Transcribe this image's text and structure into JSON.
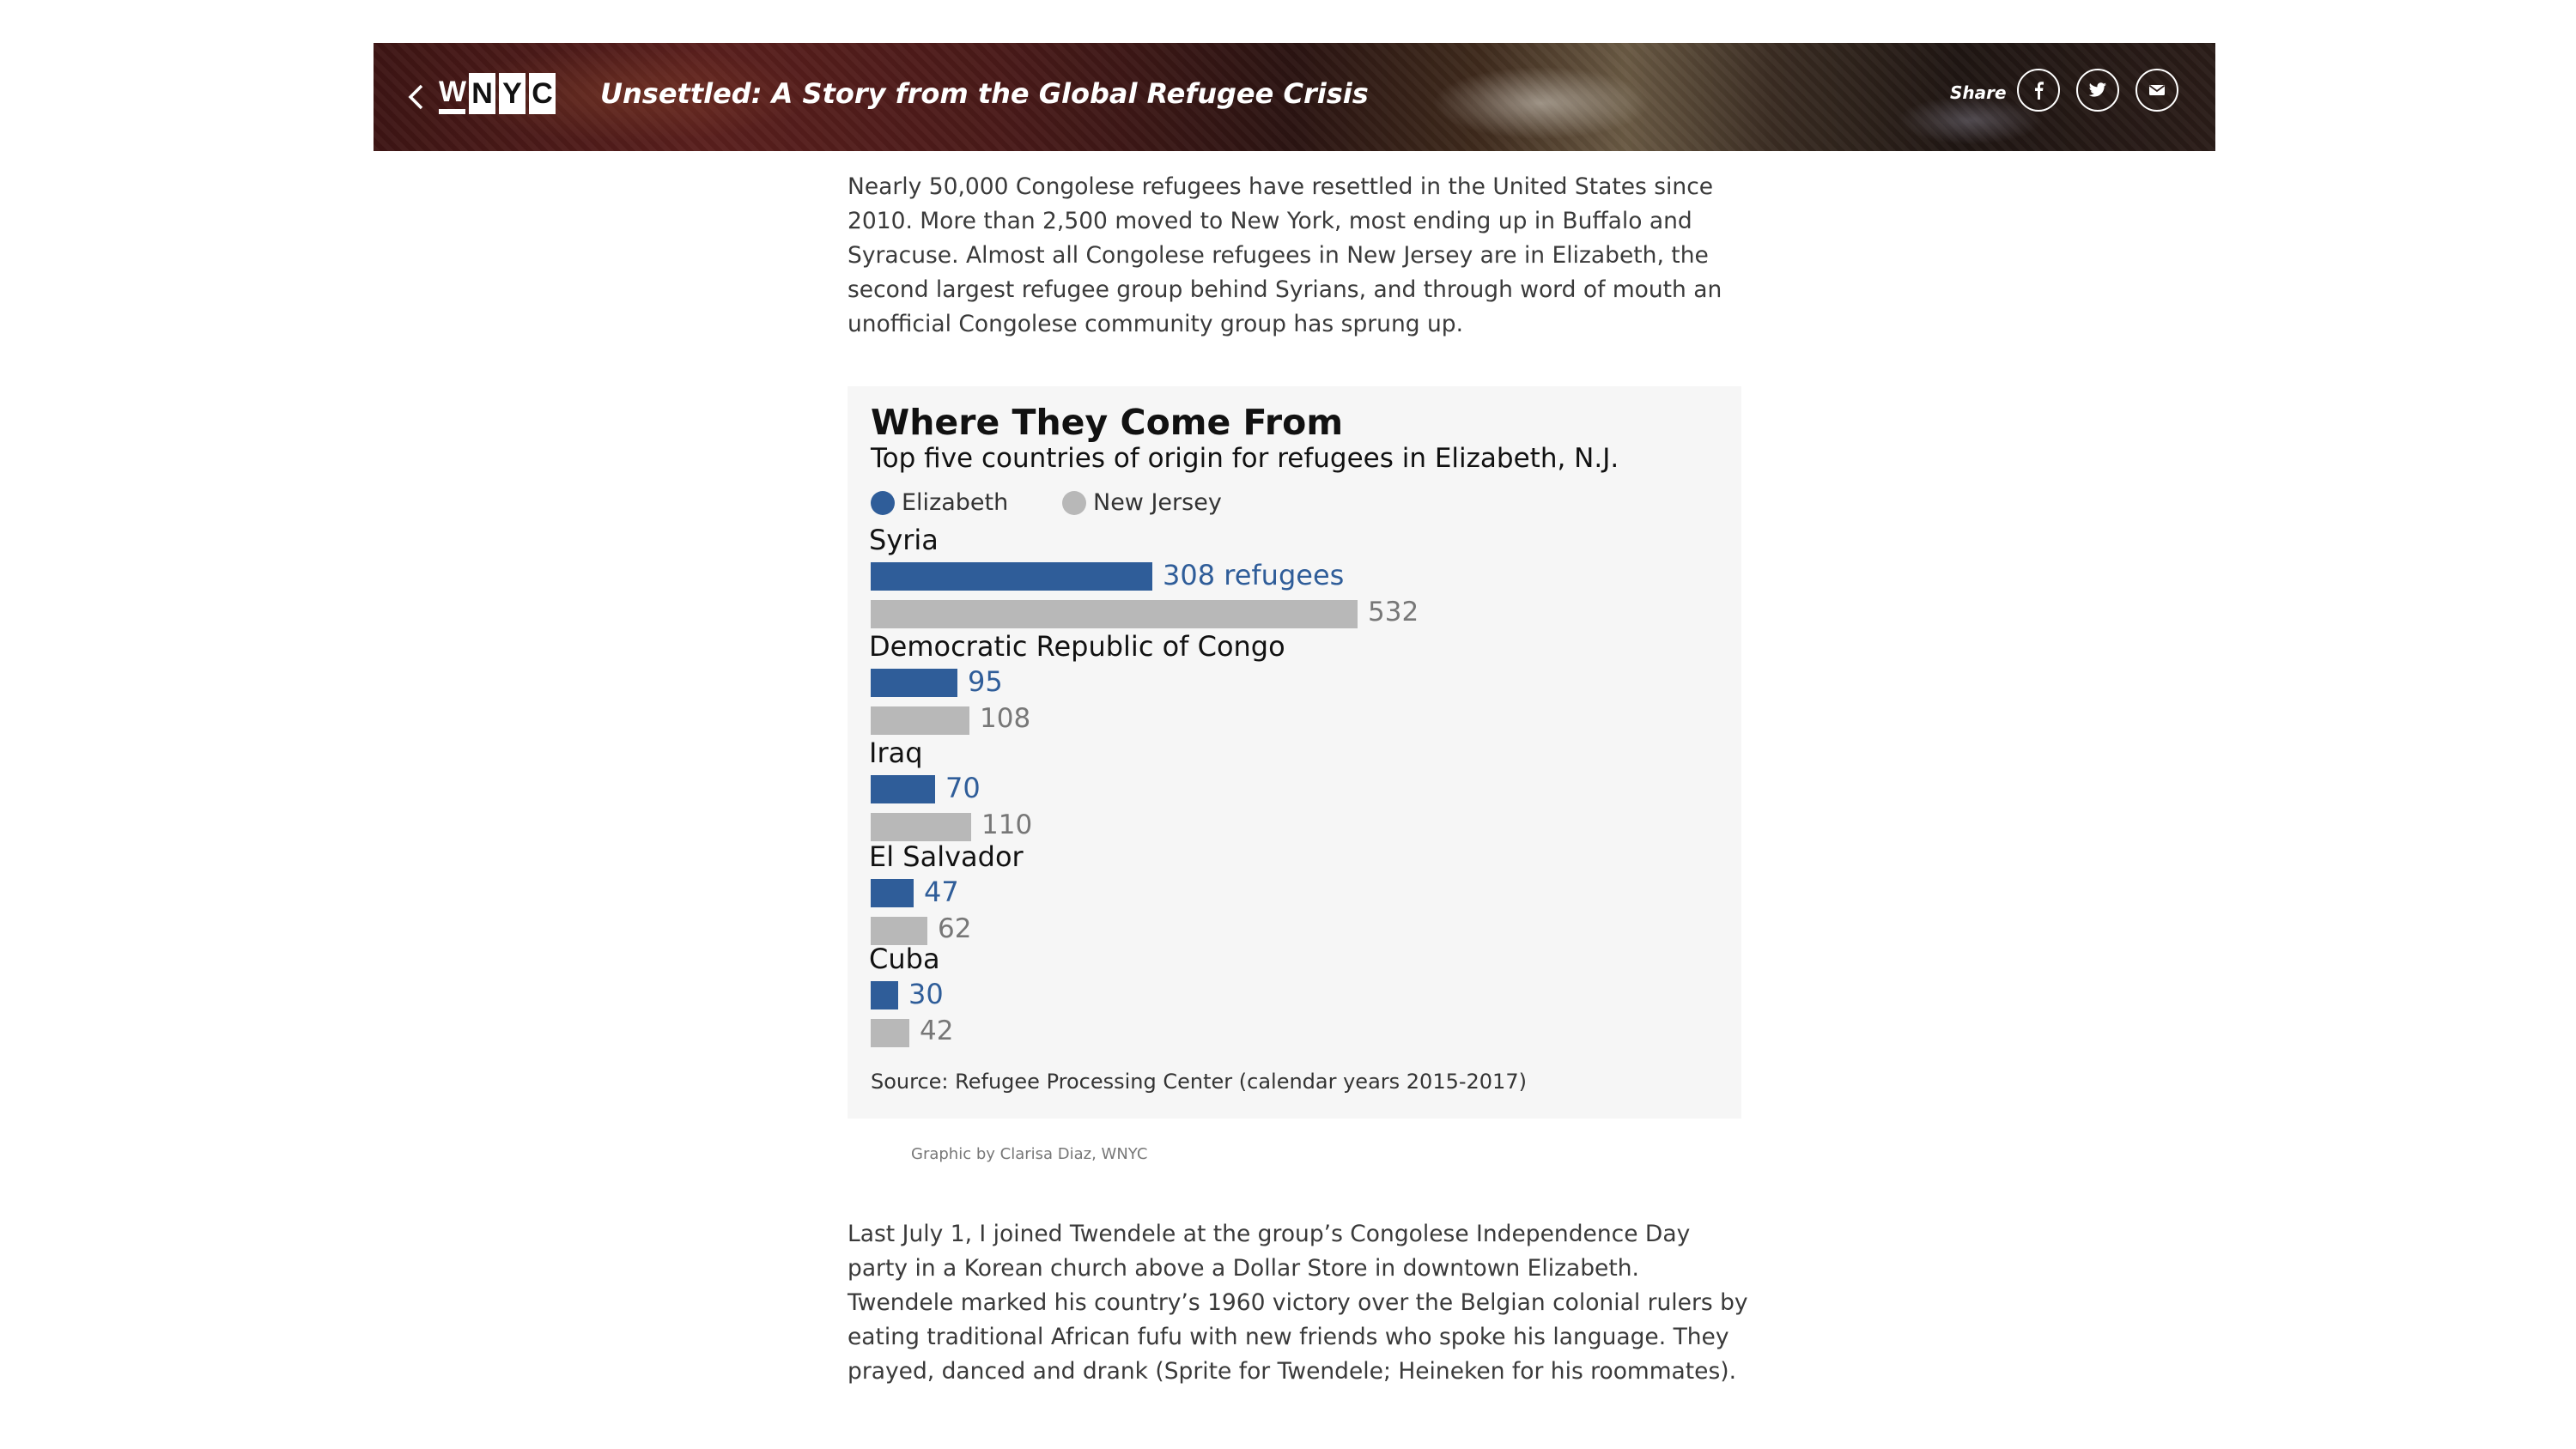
{
  "header": {
    "logo_letters": [
      "W",
      "N",
      "Y",
      "C"
    ],
    "title": "Unsettled: A Story from the Global Refugee Crisis",
    "share_label": "Share",
    "share_buttons": [
      {
        "icon": "facebook-icon"
      },
      {
        "icon": "twitter-icon"
      },
      {
        "icon": "email-icon"
      }
    ]
  },
  "article": {
    "paragraph_1": "Nearly 50,000 Congolese refugees have resettled in the United States since 2010. More than 2,500 moved to New York, most ending up in Buffalo and Syracuse. Almost all Congolese refugees in New Jersey are in Elizabeth, the second largest refugee group behind Syrians, and through word of mouth an unofficial Congolese community group has sprung up.",
    "paragraph_2": "Last July 1, I joined Twendele at the group’s Congolese Independence Day party in a Korean church above a Dollar Store in downtown Elizabeth. Twendele marked his country’s 1960 victory over the Belgian colonial rulers by eating traditional African fufu with new friends who spoke his language. They prayed, danced and drank (Sprite for Twendele; Heineken for his roommates)."
  },
  "chart_data": {
    "type": "bar",
    "orientation": "horizontal",
    "title": "Where They Come From",
    "subtitle": "Top five countries of origin for refugees in Elizabeth, N.J.",
    "categories": [
      "Syria",
      "Democratic Republic of Congo",
      "Iraq",
      "El Salvador",
      "Cuba"
    ],
    "series": [
      {
        "name": "Elizabeth",
        "values": [
          308,
          95,
          70,
          47,
          30
        ],
        "color": "#2f5d99",
        "labels": [
          "308 refugees",
          "95",
          "70",
          "47",
          "30"
        ]
      },
      {
        "name": "New Jersey",
        "values": [
          532,
          108,
          110,
          62,
          42
        ],
        "color": "#b8b8b8",
        "labels": [
          "532",
          "108",
          "110",
          "62",
          "42"
        ]
      }
    ],
    "source": "Source: Refugee Processing Center (calendar years 2015-2017)",
    "legend_position": "top-left",
    "grid": false
  },
  "credit": "Graphic by Clarisa Diaz, WNYC"
}
